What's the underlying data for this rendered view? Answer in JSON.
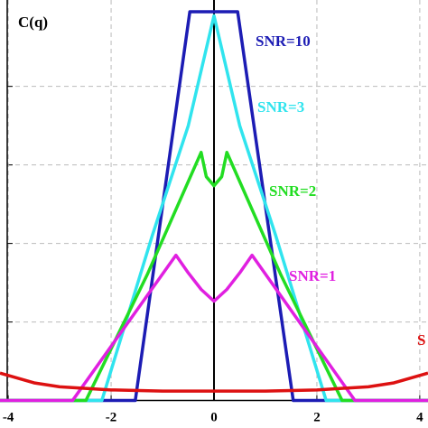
{
  "chart_data": {
    "type": "line",
    "ylabel": "C(q)",
    "xlim": [
      -4.16,
      4.16
    ],
    "ylim": [
      -0.07,
      1.02
    ],
    "xticks": [
      -4,
      -2,
      0,
      2,
      4
    ],
    "yticks": [
      0.2,
      0.4,
      0.6,
      0.8
    ],
    "grid": true,
    "series": [
      {
        "name": "SNR=10",
        "color": "#1c1cb4",
        "x": [
          -4.16,
          -1.53,
          -0.47,
          0.46,
          1.54,
          4.16
        ],
        "values": [
          0,
          0,
          0.99,
          0.99,
          0,
          0
        ]
      },
      {
        "name": "SNR=3",
        "color": "#30e4ee",
        "x": [
          -4.16,
          -2.18,
          -1.2,
          -0.5,
          0,
          0.5,
          1.2,
          2.18,
          4.16
        ],
        "values": [
          0,
          0,
          0.42,
          0.7,
          0.98,
          0.7,
          0.42,
          0,
          0
        ]
      },
      {
        "name": "SNR=2",
        "color": "#22dd22",
        "x": [
          -4.16,
          -2.49,
          -1.3,
          -0.25,
          -0.15,
          0,
          0.15,
          0.25,
          1.3,
          2.49,
          4.16
        ],
        "values": [
          0,
          0,
          0.32,
          0.632,
          0.57,
          0.547,
          0.57,
          0.632,
          0.32,
          0,
          0
        ]
      },
      {
        "name": "SNR=1",
        "color": "#e020e0",
        "x": [
          -4.16,
          -2.75,
          -0.74,
          -0.5,
          -0.25,
          0,
          0.25,
          0.5,
          0.74,
          2.74,
          4.16
        ],
        "values": [
          0,
          0,
          0.37,
          0.325,
          0.283,
          0.253,
          0.283,
          0.325,
          0.37,
          0,
          0
        ]
      },
      {
        "name": "S",
        "color": "#dd1111",
        "x": [
          -4.16,
          -3.5,
          -3,
          -2,
          -1,
          0,
          1,
          2,
          3,
          3.5,
          4.16
        ],
        "values": [
          0.07,
          0.045,
          0.035,
          0.027,
          0.024,
          0.024,
          0.024,
          0.027,
          0.035,
          0.045,
          0.07
        ]
      }
    ]
  }
}
